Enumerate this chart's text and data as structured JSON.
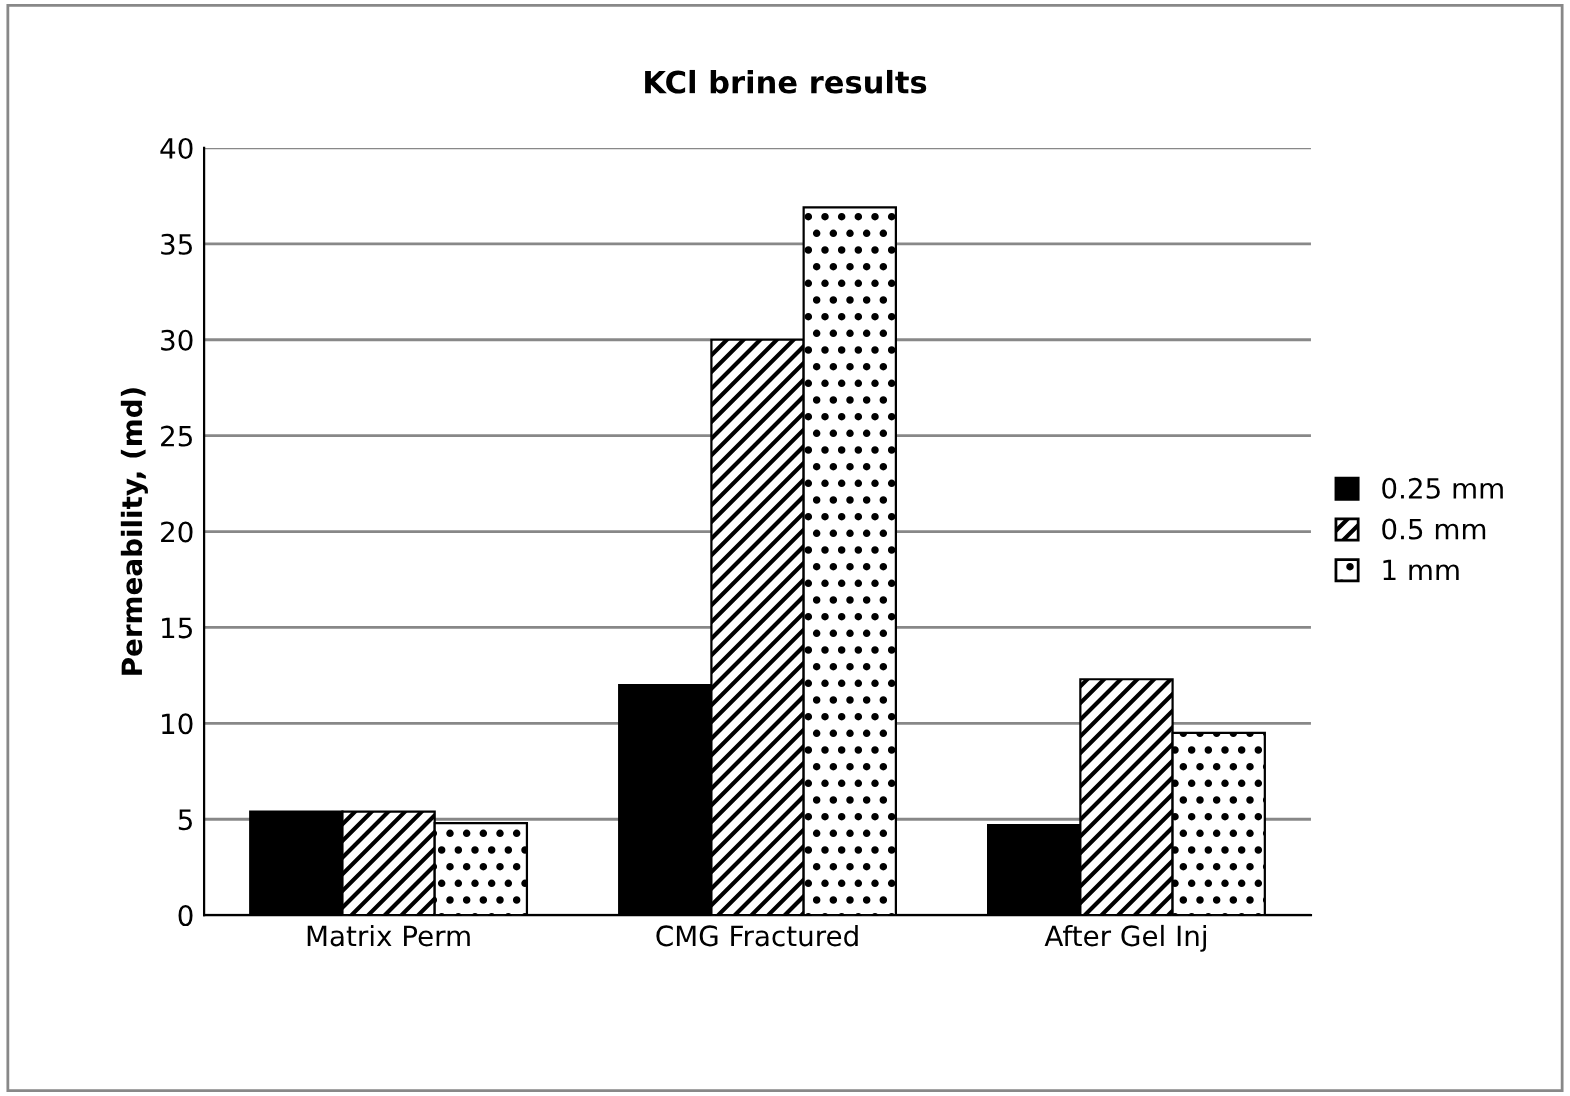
{
  "chart_data": {
    "type": "bar",
    "title": "KCl brine results",
    "ylabel": "Permeability, (md)",
    "categories": [
      "Matrix Perm",
      "CMG Fractured",
      "After Gel Inj"
    ],
    "series": [
      {
        "name": "0.25 mm",
        "color": "#000000",
        "values": [
          5.4,
          12.0,
          4.7
        ]
      },
      {
        "name": "0.5 mm",
        "color": "#000000",
        "values": [
          5.4,
          30.0,
          12.3
        ]
      },
      {
        "name": "1 mm",
        "color": "#000000",
        "values": [
          4.8,
          36.9,
          9.5
        ]
      }
    ],
    "ylim": [
      0,
      40
    ],
    "yticks": [
      0,
      5,
      10,
      15,
      20,
      25,
      30,
      35,
      40
    ],
    "grid": "y",
    "legend": "right"
  }
}
